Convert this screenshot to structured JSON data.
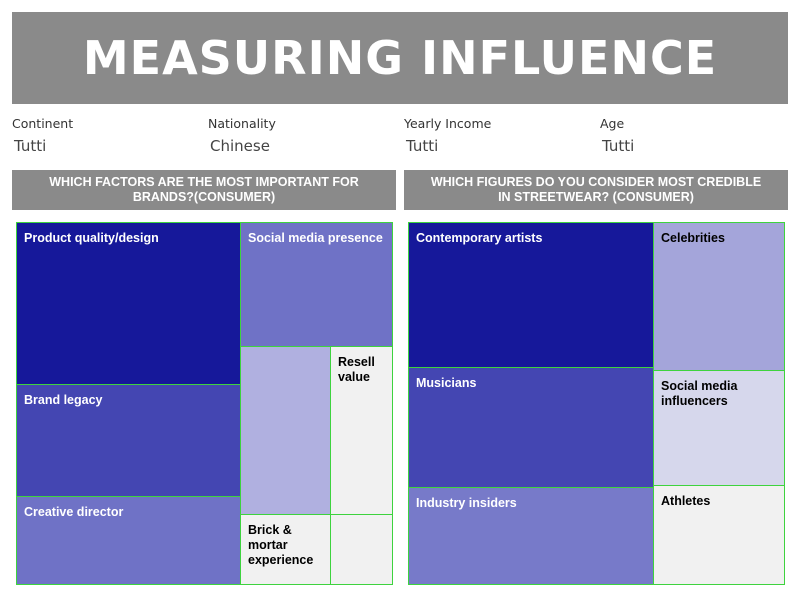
{
  "title": "MEASURING INFLUENCE",
  "filters": [
    {
      "label": "Continent",
      "value": "Tutti"
    },
    {
      "label": "Nationality",
      "value": "Chinese"
    },
    {
      "label": "Yearly Income",
      "value": "Tutti"
    },
    {
      "label": "Age",
      "value": "Tutti"
    }
  ],
  "left_panel": {
    "title": "WHICH FACTORS ARE THE MOST IMPORTANT FOR BRANDS?(CONSUMER)",
    "cells": {
      "product_quality": "Product quality/design",
      "social_media_presence": "Social media presence",
      "brand_legacy": "Brand legacy",
      "resell_value": "Resell value",
      "creative_director": "Creative director",
      "brick_mortar": "Brick & mortar experience"
    }
  },
  "right_panel": {
    "title": "WHICH FIGURES DO YOU CONSIDER MOST CREDIBLE IN STREETWEAR? (CONSUMER)",
    "cells": {
      "contemporary_artists": "Contemporary artists",
      "celebrities": "Celebrities",
      "musicians": "Musicians",
      "social_media_influencers": "Social media influencers",
      "industry_insiders": "Industry insiders",
      "athletes": "Athletes"
    }
  },
  "colors": {
    "banner": "#8a8a8a",
    "cell_border": "#3ed33e",
    "darkest": "#16189a",
    "mid": "#4446b2",
    "soft": "#6f72c6",
    "light": "#a4a5da",
    "pale": "#d6d7ec",
    "grey": "#f1f1f1"
  }
}
